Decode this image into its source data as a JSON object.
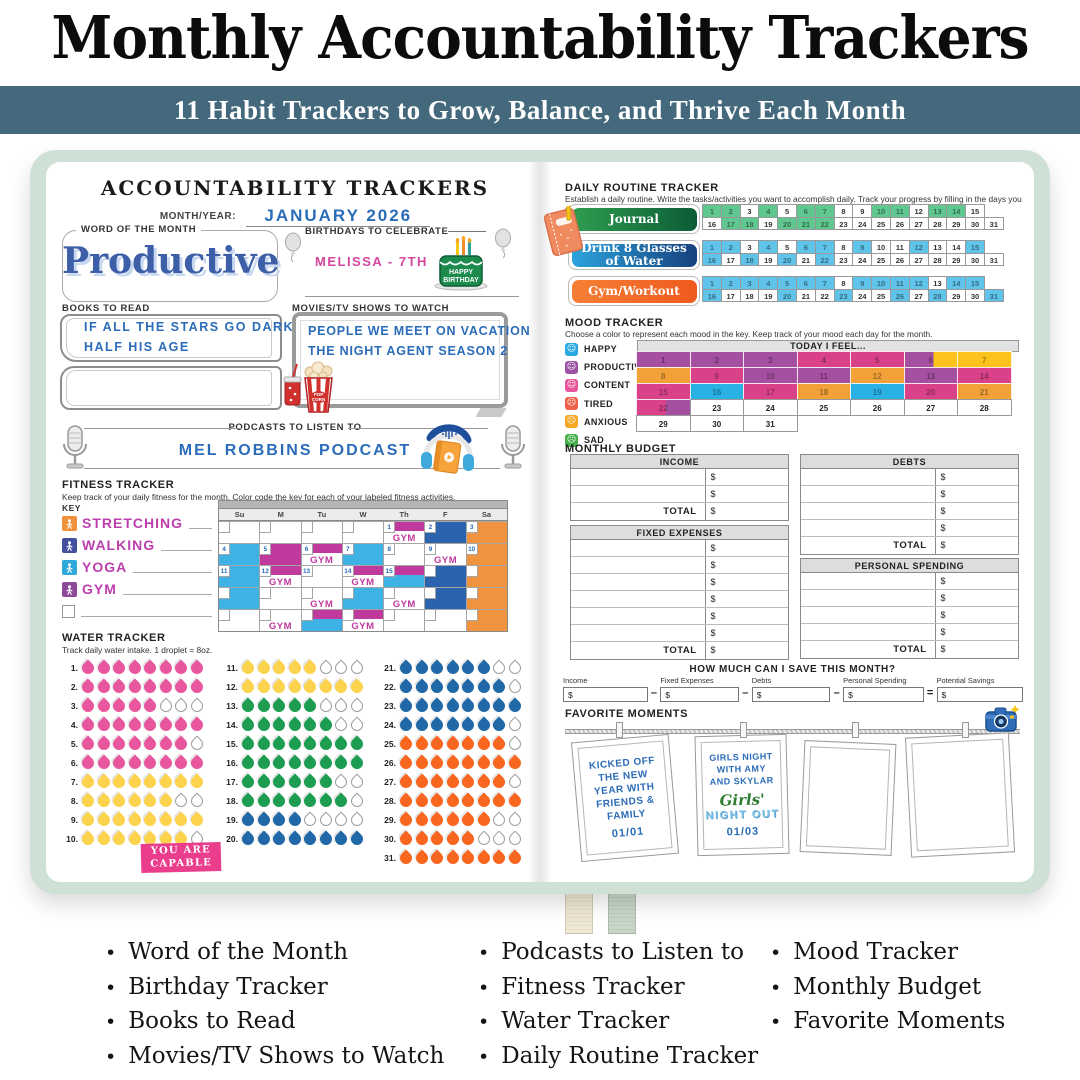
{
  "header": {
    "title": "Monthly Accountability Trackers",
    "banner": "11 Habit Trackers to Grow, Balance, and Thrive Each Month"
  },
  "left_page": {
    "title": "ACCOUNTABILITY TRACKERS",
    "month_year_label": "MONTH/YEAR:",
    "month_year_value": "JANUARY 2026",
    "word_of_month": {
      "label": "WORD OF THE MONTH",
      "value": "Productive"
    },
    "birthdays": {
      "label": "BIRTHDAYS TO CELEBRATE",
      "value": "MELISSA - 7TH",
      "cake_line1": "HAPPY",
      "cake_line2": "BIRTHDAY"
    },
    "books": {
      "label": "BOOKS TO READ",
      "entries": [
        "IF ALL THE STARS GO DARK",
        "HALF HIS AGE"
      ]
    },
    "movies": {
      "label": "MOVIES/TV SHOWS TO WATCH",
      "entries": [
        "PEOPLE WE MEET ON VACATION",
        "THE NIGHT AGENT SEASON 2"
      ]
    },
    "podcasts": {
      "label": "PODCASTS TO LISTEN TO",
      "value": "MEL ROBBINS PODCAST"
    },
    "fitness": {
      "title": "FITNESS TRACKER",
      "subtitle": "Keep track of your daily fitness for the month. Color code the key for each of your labeled fitness activities.",
      "key_label": "KEY",
      "key": [
        {
          "label": "STRETCHING",
          "color": "#f0913c"
        },
        {
          "label": "WALKING",
          "color": "#44519f"
        },
        {
          "label": "YOGA",
          "color": "#2fa8dc"
        },
        {
          "label": "GYM",
          "color": "#8d4a9b"
        }
      ],
      "days": [
        "Su",
        "M",
        "Tu",
        "W",
        "Th",
        "F",
        "Sa"
      ],
      "palette": {
        "lb": "#3eb2e5",
        "db": "#2c63ae",
        "mg": "#c0399c",
        "or": "#f0933f"
      },
      "gym_text": "GYM",
      "weeks": [
        [
          {},
          {},
          {},
          {},
          {
            "d": "1",
            "bar": true,
            "gym": true
          },
          {
            "d": "2",
            "f": "db"
          },
          {
            "d": "3",
            "f": "or"
          }
        ],
        [
          {
            "d": "4",
            "f": "lb"
          },
          {
            "d": "5",
            "f": "mg"
          },
          {
            "d": "6",
            "bar": true,
            "gym": true
          },
          {
            "d": "7",
            "f": "lb"
          },
          {
            "d": "8"
          },
          {
            "d": "9",
            "gym": true
          },
          {
            "d": "10",
            "f": "or"
          }
        ],
        [
          {
            "d": "11",
            "f": "lb"
          },
          {
            "d": "12",
            "bar": true,
            "gym": true
          },
          {
            "d": "13"
          },
          {
            "d": "14",
            "bar": true,
            "gym": true
          },
          {
            "d": "15",
            "f": "lb",
            "bar": true
          },
          {
            "f": "db"
          },
          {
            "f": "or"
          }
        ],
        [
          {
            "f": "lb"
          },
          {},
          {
            "gym": true
          },
          {
            "f": "lb"
          },
          {
            "gym": true
          },
          {
            "f": "db"
          },
          {
            "f": "or"
          }
        ],
        [
          {},
          {
            "gym": true
          },
          {
            "f": "lb",
            "bar": true
          },
          {
            "bar": true,
            "gym": true
          },
          {},
          {},
          {
            "f": "or"
          }
        ]
      ]
    },
    "water": {
      "title": "WATER TRACKER",
      "subtitle": "Track daily water intake. 1 droplet = 8oz.",
      "palette": {
        "pink": "#e8579e",
        "yellow": "#fdd24d",
        "green": "#1d9d52",
        "blue": "#2068a8",
        "orange": "#f8661f"
      },
      "rows": [
        {
          "n": "1.",
          "color": "pink",
          "filled": 8
        },
        {
          "n": "2.",
          "color": "pink",
          "filled": 8
        },
        {
          "n": "3.",
          "color": "pink",
          "filled": 5
        },
        {
          "n": "4.",
          "color": "pink",
          "filled": 8
        },
        {
          "n": "5.",
          "color": "pink",
          "filled": 7
        },
        {
          "n": "6.",
          "color": "pink",
          "filled": 8
        },
        {
          "n": "7.",
          "color": "yellow",
          "filled": 8
        },
        {
          "n": "8.",
          "color": "yellow",
          "filled": 6
        },
        {
          "n": "9.",
          "color": "yellow",
          "filled": 8
        },
        {
          "n": "10.",
          "color": "yellow",
          "filled": 7
        },
        {
          "n": "11.",
          "color": "yellow",
          "filled": 5
        },
        {
          "n": "12.",
          "color": "yellow",
          "filled": 8
        },
        {
          "n": "13.",
          "color": "green",
          "filled": 5
        },
        {
          "n": "14.",
          "color": "green",
          "filled": 6
        },
        {
          "n": "15.",
          "color": "green",
          "filled": 8
        },
        {
          "n": "16.",
          "color": "green",
          "filled": 8
        },
        {
          "n": "17.",
          "color": "green",
          "filled": 6
        },
        {
          "n": "18.",
          "color": "green",
          "filled": 7
        },
        {
          "n": "19.",
          "color": "blue",
          "filled": 4
        },
        {
          "n": "20.",
          "color": "blue",
          "filled": 8
        },
        {
          "n": "21.",
          "color": "blue",
          "filled": 6
        },
        {
          "n": "22.",
          "color": "blue",
          "filled": 7
        },
        {
          "n": "23.",
          "color": "blue",
          "filled": 8
        },
        {
          "n": "24.",
          "color": "blue",
          "filled": 7
        },
        {
          "n": "25.",
          "color": "orange",
          "filled": 7
        },
        {
          "n": "26.",
          "color": "orange",
          "filled": 8
        },
        {
          "n": "27.",
          "color": "orange",
          "filled": 7
        },
        {
          "n": "28.",
          "color": "orange",
          "filled": 8
        },
        {
          "n": "29.",
          "color": "orange",
          "filled": 6
        },
        {
          "n": "30.",
          "color": "orange",
          "filled": 5
        },
        {
          "n": "31.",
          "color": "orange",
          "filled": 8
        }
      ]
    },
    "tape": {
      "line1": "YOU ARE",
      "line2": "CAPABLE"
    }
  },
  "right_page": {
    "routine": {
      "title": "DAILY ROUTINE TRACKER",
      "subtitle": "Establish a daily routine. Write the tasks/activities you want to accomplish daily. Track your progress by filling in the days you complete them.",
      "rows": [
        {
          "label": "Journal",
          "pill": "green",
          "fill": "#5fc78f",
          "filled": [
            1,
            2,
            4,
            6,
            7,
            10,
            11,
            13,
            14,
            17,
            18,
            20,
            21,
            22
          ]
        },
        {
          "label": "Drink 8 Glasses of Water",
          "pill": "blue",
          "fill": "#5fc3ea",
          "filled": [
            1,
            2,
            4,
            6,
            7,
            9,
            12,
            15,
            16,
            18,
            20,
            22
          ]
        },
        {
          "label": "Gym/Workout",
          "pill": "orange",
          "fill": "#5fc3ea",
          "filled": [
            1,
            2,
            3,
            4,
            5,
            6,
            7,
            9,
            10,
            11,
            12,
            14,
            15,
            16,
            20,
            23,
            26,
            28,
            31
          ]
        }
      ]
    },
    "mood": {
      "title": "MOOD TRACKER",
      "subtitle": "Choose a color to represent each mood in the key. Keep track of your mood each day for the month.",
      "grid_header": "TODAY I FEEL...",
      "key": [
        {
          "label": "HAPPY",
          "color": "#2aa7e0",
          "face": "☺"
        },
        {
          "label": "PRODUCTIVE",
          "color": "#9c51a5",
          "face": "☺"
        },
        {
          "label": "CONTENT",
          "color": "#e8559b",
          "face": "☺"
        },
        {
          "label": "TIRED",
          "color": "#ee5f4b",
          "face": "☹"
        },
        {
          "label": "ANXIOUS",
          "color": "#f5a623",
          "face": "☹"
        },
        {
          "label": "SAD",
          "color": "#43b04a",
          "face": "☹"
        }
      ],
      "palette": {
        "purple": "#a44fa0",
        "pink": "#d94289",
        "orange": "#f2a038",
        "yellow": "#fcc31c",
        "blue": "#29b1e4"
      },
      "day_colors": [
        "purple",
        "purple",
        "purple",
        "pink",
        "pink",
        "purple|yellow",
        "yellow",
        "orange",
        "pink",
        "purple",
        "purple",
        "orange",
        "purple",
        "pink",
        "pink",
        "blue",
        "pink",
        "orange",
        "blue",
        "pink",
        "orange",
        "pink|purple",
        "",
        "",
        "",
        "",
        "",
        "",
        "",
        "",
        ""
      ]
    },
    "budget": {
      "title": "MONTHLY BUDGET",
      "total_label": "TOTAL",
      "currency": "$",
      "tables": [
        {
          "title": "INCOME",
          "rows": 2
        },
        {
          "title": "FIXED EXPENSES",
          "rows": 6
        },
        {
          "title": "DEBTS",
          "rows": 4
        },
        {
          "title": "PERSONAL SPENDING",
          "rows": 4
        }
      ]
    },
    "savings": {
      "title": "HOW MUCH CAN I SAVE THIS MONTH?",
      "currency": "$",
      "fields": [
        "Income",
        "Fixed Expenses",
        "Debts",
        "Personal Spending",
        "Potential Savings"
      ],
      "operators": [
        "–",
        "–",
        "–",
        "="
      ]
    },
    "moments": {
      "title": "FAVORITE MOMENTS",
      "frames": [
        {
          "lines": [
            "KICKED OFF",
            "THE NEW",
            "YEAR WITH",
            "FRIENDS &",
            "FAMILY"
          ],
          "date": "01/01"
        },
        {
          "lines": [
            "GIRLS NIGHT",
            "WITH AMY",
            "AND SKYLAR"
          ],
          "sticker_script": "Girls'",
          "sticker_caps": "NIGHT OUT",
          "date": "01/03"
        },
        {
          "lines": [],
          "date": ""
        },
        {
          "lines": [],
          "date": ""
        }
      ]
    }
  },
  "footer": {
    "columns": [
      [
        "Word of the Month",
        "Birthday Tracker",
        "Books to Read",
        "Movies/TV Shows to Watch"
      ],
      [
        "Podcasts to Listen to",
        "Fitness Tracker",
        "Water Tracker",
        "Daily Routine Tracker"
      ],
      [
        "Mood  Tracker",
        "Monthly Budget",
        "Favorite Moments"
      ]
    ]
  }
}
